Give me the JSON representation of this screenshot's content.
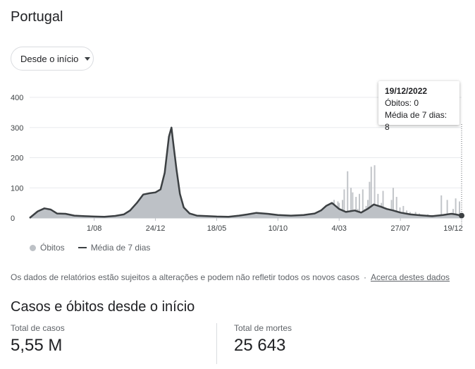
{
  "page_title": "Portugal",
  "range_selector": {
    "label": "Desde o início"
  },
  "tooltip": {
    "date": "19/12/2022",
    "deaths": "Óbitos: 0",
    "average": "Média de 7 dias: 8"
  },
  "legend": {
    "deaths": "Óbitos",
    "average": "Média de 7 dias"
  },
  "note": {
    "text": "Os dados de relatórios estão sujeitos a alterações e podem não refletir todos os novos casos",
    "link": "Acerca destes dados"
  },
  "totals": {
    "heading": "Casos e óbitos desde o início",
    "cases_label": "Total de casos",
    "cases_value": "5,55 M",
    "deaths_label": "Total de mortes",
    "deaths_value": "25 643"
  },
  "colors": {
    "bars": "#c2c5c9",
    "area": "#bdc1c6",
    "line": "#3c4043",
    "grid": "#e8eaed"
  },
  "chart_data": {
    "type": "area",
    "title": "",
    "xlabel": "",
    "ylabel": "",
    "ylim": [
      0,
      400
    ],
    "y_ticks": [
      "0",
      "100",
      "200",
      "300",
      "400"
    ],
    "x_ticks": [
      "1/08",
      "24/12",
      "18/05",
      "10/10",
      "4/03",
      "27/07",
      "19/12"
    ],
    "x_range": [
      "2020-03-01",
      "2022-12-19"
    ],
    "grid": true,
    "legend_position": "bottom-left",
    "average_series": {
      "name": "Média de 7 dias",
      "x": [
        "2020-03-01",
        "2020-03-20",
        "2020-04-05",
        "2020-04-20",
        "2020-05-05",
        "2020-05-25",
        "2020-06-15",
        "2020-07-10",
        "2020-08-01",
        "2020-08-25",
        "2020-09-20",
        "2020-10-10",
        "2020-10-25",
        "2020-11-10",
        "2020-11-25",
        "2020-12-10",
        "2020-12-24",
        "2021-01-05",
        "2021-01-15",
        "2021-01-25",
        "2021-01-31",
        "2021-02-05",
        "2021-02-12",
        "2021-02-20",
        "2021-03-01",
        "2021-03-15",
        "2021-04-01",
        "2021-05-18",
        "2021-06-15",
        "2021-07-10",
        "2021-07-30",
        "2021-08-20",
        "2021-09-15",
        "2021-10-10",
        "2021-11-10",
        "2021-12-10",
        "2022-01-05",
        "2022-01-20",
        "2022-02-01",
        "2022-02-15",
        "2022-03-04",
        "2022-03-20",
        "2022-04-10",
        "2022-04-25",
        "2022-05-10",
        "2022-05-25",
        "2022-06-10",
        "2022-06-25",
        "2022-07-10",
        "2022-07-27",
        "2022-08-20",
        "2022-09-15",
        "2022-10-10",
        "2022-11-05",
        "2022-11-25",
        "2022-12-05",
        "2022-12-19"
      ],
      "values": [
        0,
        22,
        32,
        28,
        15,
        14,
        8,
        6,
        5,
        4,
        7,
        12,
        25,
        50,
        78,
        82,
        85,
        95,
        150,
        270,
        300,
        240,
        160,
        80,
        35,
        15,
        8,
        5,
        4,
        8,
        12,
        17,
        14,
        10,
        8,
        10,
        15,
        25,
        40,
        50,
        30,
        20,
        25,
        18,
        30,
        45,
        38,
        30,
        25,
        18,
        12,
        9,
        6,
        10,
        14,
        12,
        8
      ]
    },
    "bar_series": {
      "name": "Óbitos",
      "x": [
        "2022-02-10",
        "2022-02-15",
        "2022-02-20",
        "2022-02-25",
        "2022-03-01",
        "2022-03-04",
        "2022-03-08",
        "2022-03-12",
        "2022-03-16",
        "2022-03-20",
        "2022-03-24",
        "2022-03-28",
        "2022-04-01",
        "2022-04-05",
        "2022-04-09",
        "2022-04-13",
        "2022-04-17",
        "2022-04-21",
        "2022-04-25",
        "2022-04-29",
        "2022-05-03",
        "2022-05-07",
        "2022-05-11",
        "2022-05-15",
        "2022-05-19",
        "2022-05-23",
        "2022-05-27",
        "2022-05-31",
        "2022-06-04",
        "2022-06-08",
        "2022-06-12",
        "2022-06-16",
        "2022-06-20",
        "2022-06-24",
        "2022-06-28",
        "2022-07-02",
        "2022-07-06",
        "2022-07-10",
        "2022-07-14",
        "2022-07-18",
        "2022-07-22",
        "2022-07-26",
        "2022-07-30",
        "2022-08-03",
        "2022-08-07",
        "2022-08-11",
        "2022-08-15",
        "2022-08-19",
        "2022-08-23",
        "2022-08-27",
        "2022-09-01",
        "2022-09-10",
        "2022-09-20",
        "2022-09-30",
        "2022-10-10",
        "2022-10-20",
        "2022-11-01",
        "2022-11-08",
        "2022-11-15",
        "2022-11-22",
        "2022-11-29",
        "2022-12-05",
        "2022-12-10",
        "2022-12-14",
        "2022-12-19"
      ],
      "values": [
        40,
        45,
        60,
        35,
        55,
        50,
        30,
        60,
        95,
        20,
        155,
        10,
        100,
        85,
        25,
        70,
        30,
        80,
        20,
        95,
        30,
        40,
        60,
        120,
        170,
        10,
        175,
        20,
        80,
        15,
        50,
        90,
        15,
        10,
        30,
        15,
        60,
        100,
        25,
        70,
        20,
        35,
        15,
        40,
        15,
        25,
        10,
        20,
        15,
        10,
        20,
        15,
        10,
        12,
        10,
        8,
        75,
        5,
        60,
        5,
        30,
        65,
        10,
        55,
        0
      ]
    }
  }
}
